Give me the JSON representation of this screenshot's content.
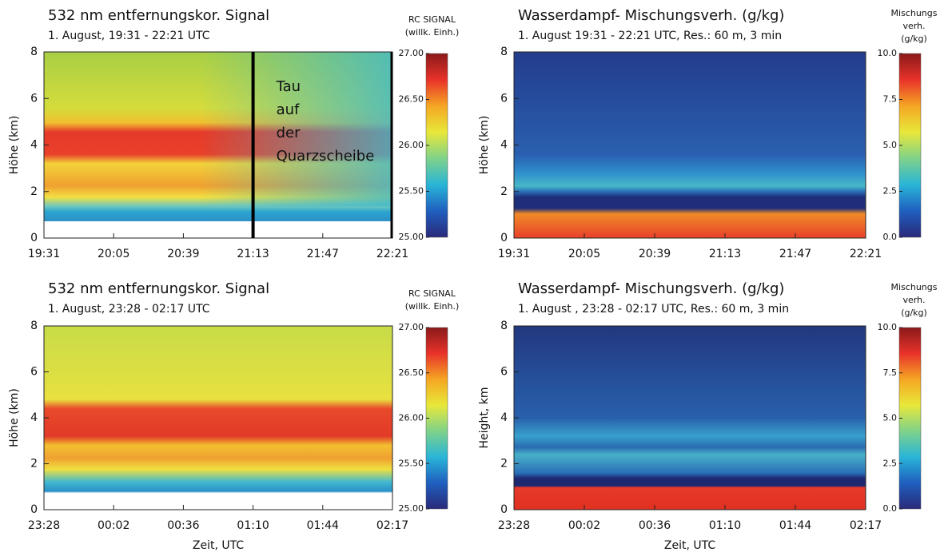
{
  "chart_data": [
    {
      "type": "heatmap",
      "title": "532 nm entfernungskor. Signal",
      "subtitle": "1. August, 19:31 - 22:21 UTC",
      "ylabel": "Höhe (km)",
      "categories": [
        "19:31",
        "20:05",
        "20:39",
        "21:13",
        "21:47",
        "22:21"
      ],
      "ylim": [
        0,
        8
      ],
      "yticks": [
        0,
        2,
        4,
        6,
        8
      ],
      "annotation": [
        "Tau",
        "auf",
        "der",
        "Quarzscheibe"
      ],
      "colorbar": {
        "label": [
          "RC SIGNAL",
          "(willk. Einh.)"
        ],
        "lim": [
          25,
          27
        ],
        "ticks": [
          {
            "value": 25,
            "label": "25.00"
          },
          {
            "value": 25.5,
            "label": "25.50"
          },
          {
            "value": 26,
            "label": "26.00"
          },
          {
            "value": 26.5,
            "label": "26.50"
          },
          {
            "value": 27,
            "label": "27.00"
          }
        ]
      }
    },
    {
      "type": "heatmap",
      "title": "Wasserdampf- Mischungsverh. (g/kg)",
      "subtitle": "1. August 19:31 - 22:21 UTC, Res.: 60 m, 3 min",
      "ylabel": "Höhe (km)",
      "categories": [
        "19:31",
        "20:05",
        "20:39",
        "21:13",
        "21:47",
        "22:21"
      ],
      "ylim": [
        0,
        8
      ],
      "yticks": [
        0,
        2,
        4,
        6,
        8
      ],
      "colorbar": {
        "label": [
          "Mischungs",
          "verh.",
          "(g/kg)"
        ],
        "lim": [
          0,
          10
        ],
        "ticks": [
          {
            "value": 0,
            "label": "0.0"
          },
          {
            "value": 2.5,
            "label": "2.5"
          },
          {
            "value": 5,
            "label": "5.0"
          },
          {
            "value": 7.5,
            "label": "7.5"
          },
          {
            "value": 10,
            "label": "10.0"
          }
        ]
      }
    },
    {
      "type": "heatmap",
      "title": "532 nm entfernungskor. Signal",
      "subtitle": "1. August, 23:28 - 02:17 UTC",
      "ylabel": "Höhe (km)",
      "xlabel": "Zeit, UTC",
      "categories": [
        "23:28",
        "00:02",
        "00:36",
        "01:10",
        "01:44",
        "02:17"
      ],
      "ylim": [
        0,
        8
      ],
      "yticks": [
        0,
        2,
        4,
        6,
        8
      ],
      "colorbar": {
        "label": [
          "RC SIGNAL",
          "(willk. Einh.)"
        ],
        "lim": [
          25,
          27
        ],
        "ticks": [
          {
            "value": 25,
            "label": "25.00"
          },
          {
            "value": 25.5,
            "label": "25.50"
          },
          {
            "value": 26,
            "label": "26.00"
          },
          {
            "value": 26.5,
            "label": "26.50"
          },
          {
            "value": 27,
            "label": "27.00"
          }
        ]
      }
    },
    {
      "type": "heatmap",
      "title": "Wasserdampf- Mischungsverh. (g/kg)",
      "subtitle": "1. August , 23:28 - 02:17 UTC, Res.: 60 m, 3 min",
      "ylabel": "Height, km",
      "xlabel": "Zeit, UTC",
      "categories": [
        "23:28",
        "00:02",
        "00:36",
        "01:10",
        "01:44",
        "02:17"
      ],
      "ylim": [
        0,
        8
      ],
      "yticks": [
        0,
        2,
        4,
        6,
        8
      ],
      "colorbar": {
        "label": [
          "Mischungs",
          "verh.",
          "(g/kg)"
        ],
        "lim": [
          0,
          10
        ],
        "ticks": [
          {
            "value": 0,
            "label": "0.0"
          },
          {
            "value": 2.5,
            "label": "2.5"
          },
          {
            "value": 5,
            "label": "5.0"
          },
          {
            "value": 7.5,
            "label": "7.5"
          },
          {
            "value": 10,
            "label": "10.0"
          }
        ]
      }
    }
  ]
}
